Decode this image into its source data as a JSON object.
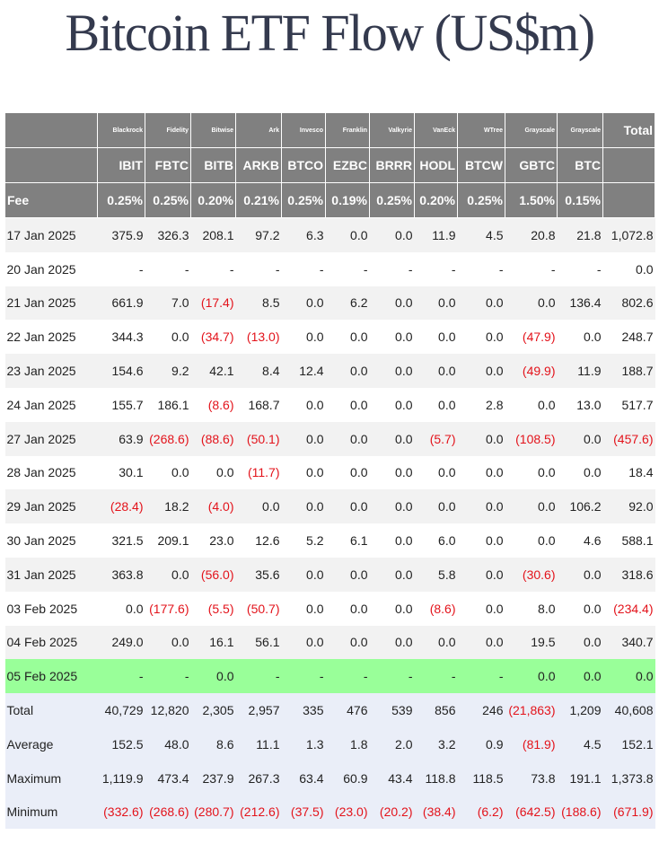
{
  "title": "Bitcoin ETF Flow (US$m)",
  "colors": {
    "header_bg": "#808080",
    "negative": "#e3131b",
    "highlight_row": "#99ff99",
    "summary_bg": "#eaeef8",
    "alt_row": "#f2f2f2"
  },
  "header": {
    "issuers": [
      "Blackrock",
      "Fidelity",
      "Bitwise",
      "Ark",
      "Invesco",
      "Franklin",
      "Valkyrie",
      "VanEck",
      "WTree",
      "Grayscale",
      "Grayscale"
    ],
    "total_label": "Total",
    "tickers": [
      "IBIT",
      "FBTC",
      "BITB",
      "ARKB",
      "BTCO",
      "EZBC",
      "BRRR",
      "HODL",
      "BTCW",
      "GBTC",
      "BTC"
    ],
    "fee_label": "Fee",
    "fees": [
      "0.25%",
      "0.25%",
      "0.20%",
      "0.21%",
      "0.25%",
      "0.19%",
      "0.25%",
      "0.20%",
      "0.25%",
      "1.50%",
      "0.15%"
    ]
  },
  "rows": [
    {
      "date": "17 Jan 2025",
      "values": [
        "375.9",
        "326.3",
        "208.1",
        "97.2",
        "6.3",
        "0.0",
        "0.0",
        "11.9",
        "4.5",
        "20.8",
        "21.8",
        "1,072.8"
      ]
    },
    {
      "date": "20 Jan 2025",
      "values": [
        "-",
        "-",
        "-",
        "-",
        "-",
        "-",
        "-",
        "-",
        "-",
        "-",
        "-",
        "0.0"
      ]
    },
    {
      "date": "21 Jan 2025",
      "values": [
        "661.9",
        "7.0",
        "(17.4)",
        "8.5",
        "0.0",
        "6.2",
        "0.0",
        "0.0",
        "0.0",
        "0.0",
        "136.4",
        "802.6"
      ]
    },
    {
      "date": "22 Jan 2025",
      "values": [
        "344.3",
        "0.0",
        "(34.7)",
        "(13.0)",
        "0.0",
        "0.0",
        "0.0",
        "0.0",
        "0.0",
        "(47.9)",
        "0.0",
        "248.7"
      ]
    },
    {
      "date": "23 Jan 2025",
      "values": [
        "154.6",
        "9.2",
        "42.1",
        "8.4",
        "12.4",
        "0.0",
        "0.0",
        "0.0",
        "0.0",
        "(49.9)",
        "11.9",
        "188.7"
      ]
    },
    {
      "date": "24 Jan 2025",
      "values": [
        "155.7",
        "186.1",
        "(8.6)",
        "168.7",
        "0.0",
        "0.0",
        "0.0",
        "0.0",
        "2.8",
        "0.0",
        "13.0",
        "517.7"
      ]
    },
    {
      "date": "27 Jan 2025",
      "values": [
        "63.9",
        "(268.6)",
        "(88.6)",
        "(50.1)",
        "0.0",
        "0.0",
        "0.0",
        "(5.7)",
        "0.0",
        "(108.5)",
        "0.0",
        "(457.6)"
      ]
    },
    {
      "date": "28 Jan 2025",
      "values": [
        "30.1",
        "0.0",
        "0.0",
        "(11.7)",
        "0.0",
        "0.0",
        "0.0",
        "0.0",
        "0.0",
        "0.0",
        "0.0",
        "18.4"
      ]
    },
    {
      "date": "29 Jan 2025",
      "values": [
        "(28.4)",
        "18.2",
        "(4.0)",
        "0.0",
        "0.0",
        "0.0",
        "0.0",
        "0.0",
        "0.0",
        "0.0",
        "106.2",
        "92.0"
      ]
    },
    {
      "date": "30 Jan 2025",
      "values": [
        "321.5",
        "209.1",
        "23.0",
        "12.6",
        "5.2",
        "6.1",
        "0.0",
        "6.0",
        "0.0",
        "0.0",
        "4.6",
        "588.1"
      ]
    },
    {
      "date": "31 Jan 2025",
      "values": [
        "363.8",
        "0.0",
        "(56.0)",
        "35.6",
        "0.0",
        "0.0",
        "0.0",
        "5.8",
        "0.0",
        "(30.6)",
        "0.0",
        "318.6"
      ]
    },
    {
      "date": "03 Feb 2025",
      "values": [
        "0.0",
        "(177.6)",
        "(5.5)",
        "(50.7)",
        "0.0",
        "0.0",
        "0.0",
        "(8.6)",
        "0.0",
        "8.0",
        "0.0",
        "(234.4)"
      ]
    },
    {
      "date": "04 Feb 2025",
      "values": [
        "249.0",
        "0.0",
        "16.1",
        "56.1",
        "0.0",
        "0.0",
        "0.0",
        "0.0",
        "0.0",
        "19.5",
        "0.0",
        "340.7"
      ]
    },
    {
      "date": "05 Feb 2025",
      "values": [
        "-",
        "-",
        "0.0",
        "-",
        "-",
        "-",
        "-",
        "-",
        "-",
        "0.0",
        "0.0",
        "0.0"
      ],
      "highlight": true
    }
  ],
  "summary": [
    {
      "label": "Total",
      "values": [
        "40,729",
        "12,820",
        "2,305",
        "2,957",
        "335",
        "476",
        "539",
        "856",
        "246",
        "(21,863)",
        "1,209",
        "40,608"
      ]
    },
    {
      "label": "Average",
      "values": [
        "152.5",
        "48.0",
        "8.6",
        "11.1",
        "1.3",
        "1.8",
        "2.0",
        "3.2",
        "0.9",
        "(81.9)",
        "4.5",
        "152.1"
      ]
    },
    {
      "label": "Maximum",
      "values": [
        "1,119.9",
        "473.4",
        "237.9",
        "267.3",
        "63.4",
        "60.9",
        "43.4",
        "118.8",
        "118.5",
        "73.8",
        "191.1",
        "1,373.8"
      ]
    },
    {
      "label": "Minimum",
      "values": [
        "(332.6)",
        "(268.6)",
        "(280.7)",
        "(212.6)",
        "(37.5)",
        "(23.0)",
        "(20.2)",
        "(38.4)",
        "(6.2)",
        "(642.5)",
        "(188.6)",
        "(671.9)"
      ]
    }
  ]
}
